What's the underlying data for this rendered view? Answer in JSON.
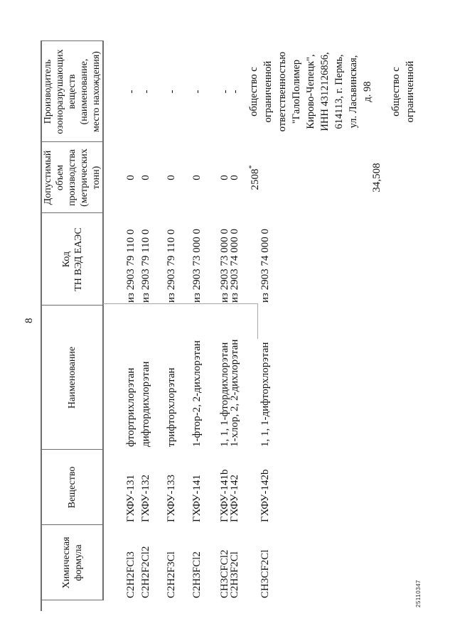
{
  "page": {
    "number": "8",
    "doc_id": "25110347"
  },
  "table": {
    "headers": [
      "Химическая\nформула",
      "Вещество",
      "Наименование",
      "Код\nТН ВЭД ЕАЭС",
      "Допустимый\nобъем\nпроизводства\n(метрических\nтонн)",
      "Производитель\nозоноразрушающих\nвеществ\n(наименование,\nместо нахождения)"
    ],
    "rows": [
      {
        "formula": "C2H2FCl3",
        "substance": "ГХФУ-131",
        "name": "фтортрихлорэтан",
        "code": "из 2903 79 110 0",
        "volume": "0",
        "volume_mark": "",
        "producer": "-"
      },
      {
        "formula": "C2H2F2Cl2",
        "substance": "ГХФУ-132",
        "name": "дифтордихлорэтан",
        "code": "из 2903 79 110 0",
        "volume": "0",
        "volume_mark": "",
        "producer": "-"
      },
      {
        "formula": "C2H2F3Cl",
        "substance": "ГХФУ-133",
        "name": "трифторхлорэтан",
        "code": "из 2903 79 110 0",
        "volume": "0",
        "volume_mark": "",
        "producer": "-"
      },
      {
        "formula": "C2H3FCl2",
        "substance": "ГХФУ-141",
        "name": "1-фтор-2, 2-дихлорэтан",
        "code": "из 2903 73 000 0",
        "volume": "0",
        "volume_mark": "",
        "producer": "-"
      },
      {
        "formula": "CH3CFCl2",
        "substance": "ГХФУ-141b",
        "name": "1, 1, 1-фтордихлорэтан",
        "code": "из 2903 73 000 0",
        "volume": "0",
        "volume_mark": "",
        "producer": "-"
      },
      {
        "formula": "C2H3F2Cl",
        "substance": "ГХФУ-142",
        "name": "1-хлор, 2, 2-дихлорэтан",
        "code": "из 2903 74 000 0",
        "volume": "0",
        "volume_mark": "",
        "producer": "-"
      },
      {
        "formula": "CH3CF2Cl",
        "substance": "ГХФУ-142b",
        "name": "1, 1, 1-дифторхлорэтан",
        "code": "из 2903 74 000 0",
        "volume": "2508",
        "volume_mark": "*",
        "producer": "общество с\nограниченной\nответственностью\n\"ГалоПолимер\nКирово-Чепецк\",\nИНН 4312126856,\n614113, г. Пермь,\nул. Ласьвинская,\nд. 98"
      }
    ],
    "continuation": {
      "volume": "34,508",
      "producer": "общество с\nограниченной"
    }
  }
}
